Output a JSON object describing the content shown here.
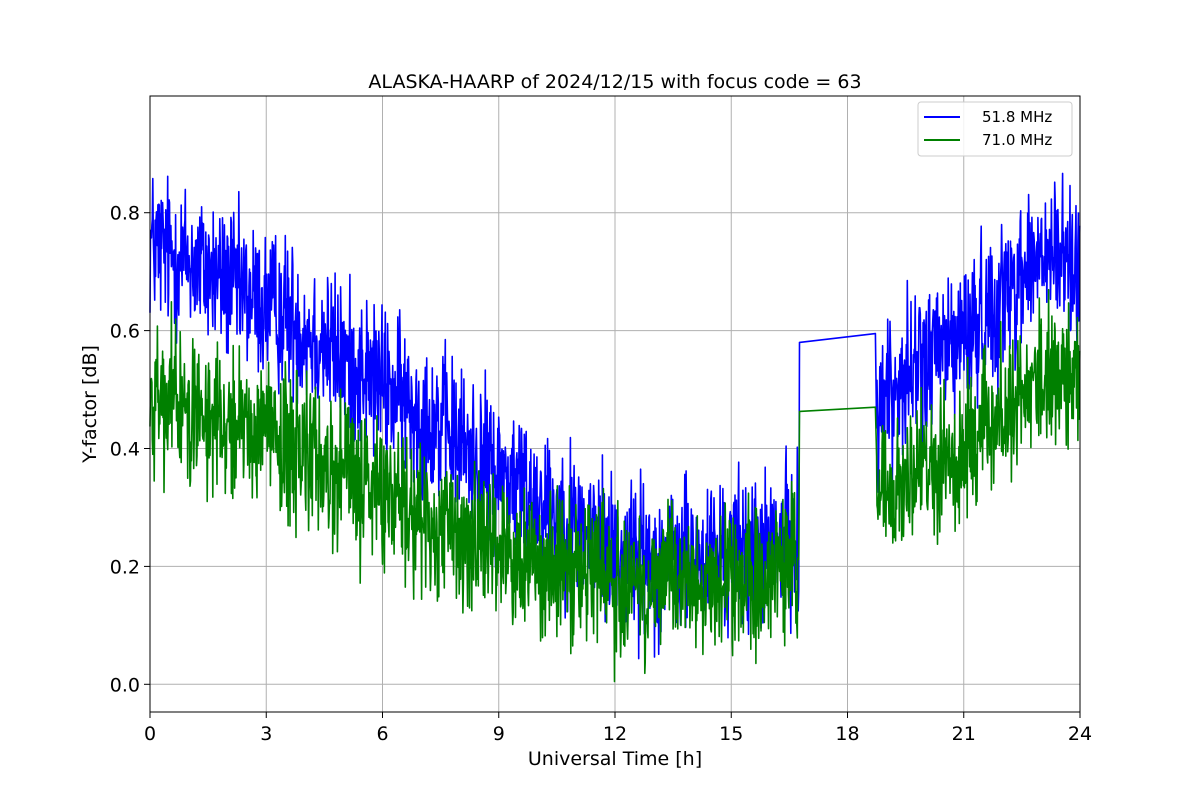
{
  "chart_data": {
    "type": "line",
    "title": "ALASKA-HAARP of 2024/12/15 with focus code = 63",
    "xlabel": "Universal Time [h]",
    "ylabel": "Y-factor [dB]",
    "xlim": [
      0,
      24
    ],
    "ylim": [
      -0.047,
      0.998
    ],
    "xticks": [
      0,
      3,
      6,
      9,
      12,
      15,
      18,
      21,
      24
    ],
    "yticks": [
      0.0,
      0.2,
      0.4,
      0.6,
      0.8
    ],
    "xtick_labels": [
      "0",
      "3",
      "6",
      "9",
      "12",
      "15",
      "18",
      "21",
      "24"
    ],
    "ytick_labels": [
      "0.0",
      "0.2",
      "0.4",
      "0.6",
      "0.8"
    ],
    "grid": true,
    "legend_position": "upper-right",
    "data_gap": [
      16.75,
      18.75
    ],
    "series": [
      {
        "name": "51.8 MHz",
        "color": "#0000ff",
        "points": [
          [
            0,
            0.75
          ],
          [
            0.5,
            0.73
          ],
          [
            1,
            0.72
          ],
          [
            1.5,
            0.7
          ],
          [
            2,
            0.68
          ],
          [
            2.5,
            0.66
          ],
          [
            3,
            0.64
          ],
          [
            3.5,
            0.63
          ],
          [
            4,
            0.6
          ],
          [
            4.5,
            0.58
          ],
          [
            5,
            0.55
          ],
          [
            5.5,
            0.53
          ],
          [
            6,
            0.51
          ],
          [
            6.5,
            0.48
          ],
          [
            7,
            0.46
          ],
          [
            7.5,
            0.44
          ],
          [
            8,
            0.41
          ],
          [
            8.5,
            0.38
          ],
          [
            9,
            0.36
          ],
          [
            9.5,
            0.34
          ],
          [
            10,
            0.32
          ],
          [
            10.5,
            0.29
          ],
          [
            11,
            0.27
          ],
          [
            11.5,
            0.25
          ],
          [
            12,
            0.23
          ],
          [
            12.5,
            0.22
          ],
          [
            13,
            0.21
          ],
          [
            13.5,
            0.21
          ],
          [
            14,
            0.21
          ],
          [
            14.5,
            0.21
          ],
          [
            15,
            0.22
          ],
          [
            15.5,
            0.22
          ],
          [
            16,
            0.23
          ],
          [
            16.5,
            0.24
          ],
          [
            16.75,
            0.25
          ],
          [
            16.76,
            0.58
          ],
          [
            18.72,
            0.595
          ],
          [
            18.75,
            0.47
          ],
          [
            19,
            0.49
          ],
          [
            19.5,
            0.52
          ],
          [
            20,
            0.55
          ],
          [
            20.5,
            0.57
          ],
          [
            21,
            0.59
          ],
          [
            21.5,
            0.62
          ],
          [
            22,
            0.66
          ],
          [
            22.5,
            0.7
          ],
          [
            23,
            0.72
          ],
          [
            23.5,
            0.72
          ],
          [
            24,
            0.72
          ]
        ],
        "peak_max": 0.953,
        "peak_min": 0.0
      },
      {
        "name": "71.0 MHz",
        "color": "#008000",
        "points": [
          [
            0,
            0.48
          ],
          [
            0.5,
            0.48
          ],
          [
            1,
            0.47
          ],
          [
            1.5,
            0.46
          ],
          [
            2,
            0.45
          ],
          [
            2.5,
            0.44
          ],
          [
            3,
            0.43
          ],
          [
            3.5,
            0.41
          ],
          [
            4,
            0.39
          ],
          [
            4.5,
            0.37
          ],
          [
            5,
            0.35
          ],
          [
            5.5,
            0.33
          ],
          [
            6,
            0.32
          ],
          [
            6.5,
            0.31
          ],
          [
            7,
            0.29
          ],
          [
            7.5,
            0.27
          ],
          [
            8,
            0.25
          ],
          [
            8.5,
            0.24
          ],
          [
            9,
            0.23
          ],
          [
            9.5,
            0.22
          ],
          [
            10,
            0.21
          ],
          [
            10.5,
            0.2
          ],
          [
            11,
            0.19
          ],
          [
            11.5,
            0.18
          ],
          [
            12,
            0.17
          ],
          [
            12.5,
            0.17
          ],
          [
            13,
            0.17
          ],
          [
            13.5,
            0.17
          ],
          [
            14,
            0.17
          ],
          [
            14.5,
            0.17
          ],
          [
            15,
            0.17
          ],
          [
            15.5,
            0.17
          ],
          [
            16,
            0.17
          ],
          [
            16.5,
            0.18
          ],
          [
            16.75,
            0.19
          ],
          [
            16.76,
            0.463
          ],
          [
            18.72,
            0.47
          ],
          [
            18.75,
            0.31
          ],
          [
            19,
            0.32
          ],
          [
            19.5,
            0.34
          ],
          [
            20,
            0.36
          ],
          [
            20.5,
            0.38
          ],
          [
            21,
            0.4
          ],
          [
            21.5,
            0.42
          ],
          [
            22,
            0.45
          ],
          [
            22.5,
            0.49
          ],
          [
            23,
            0.52
          ],
          [
            23.5,
            0.53
          ],
          [
            24,
            0.53
          ]
        ],
        "peak_max": 0.74,
        "peak_min": 0.0
      }
    ]
  }
}
